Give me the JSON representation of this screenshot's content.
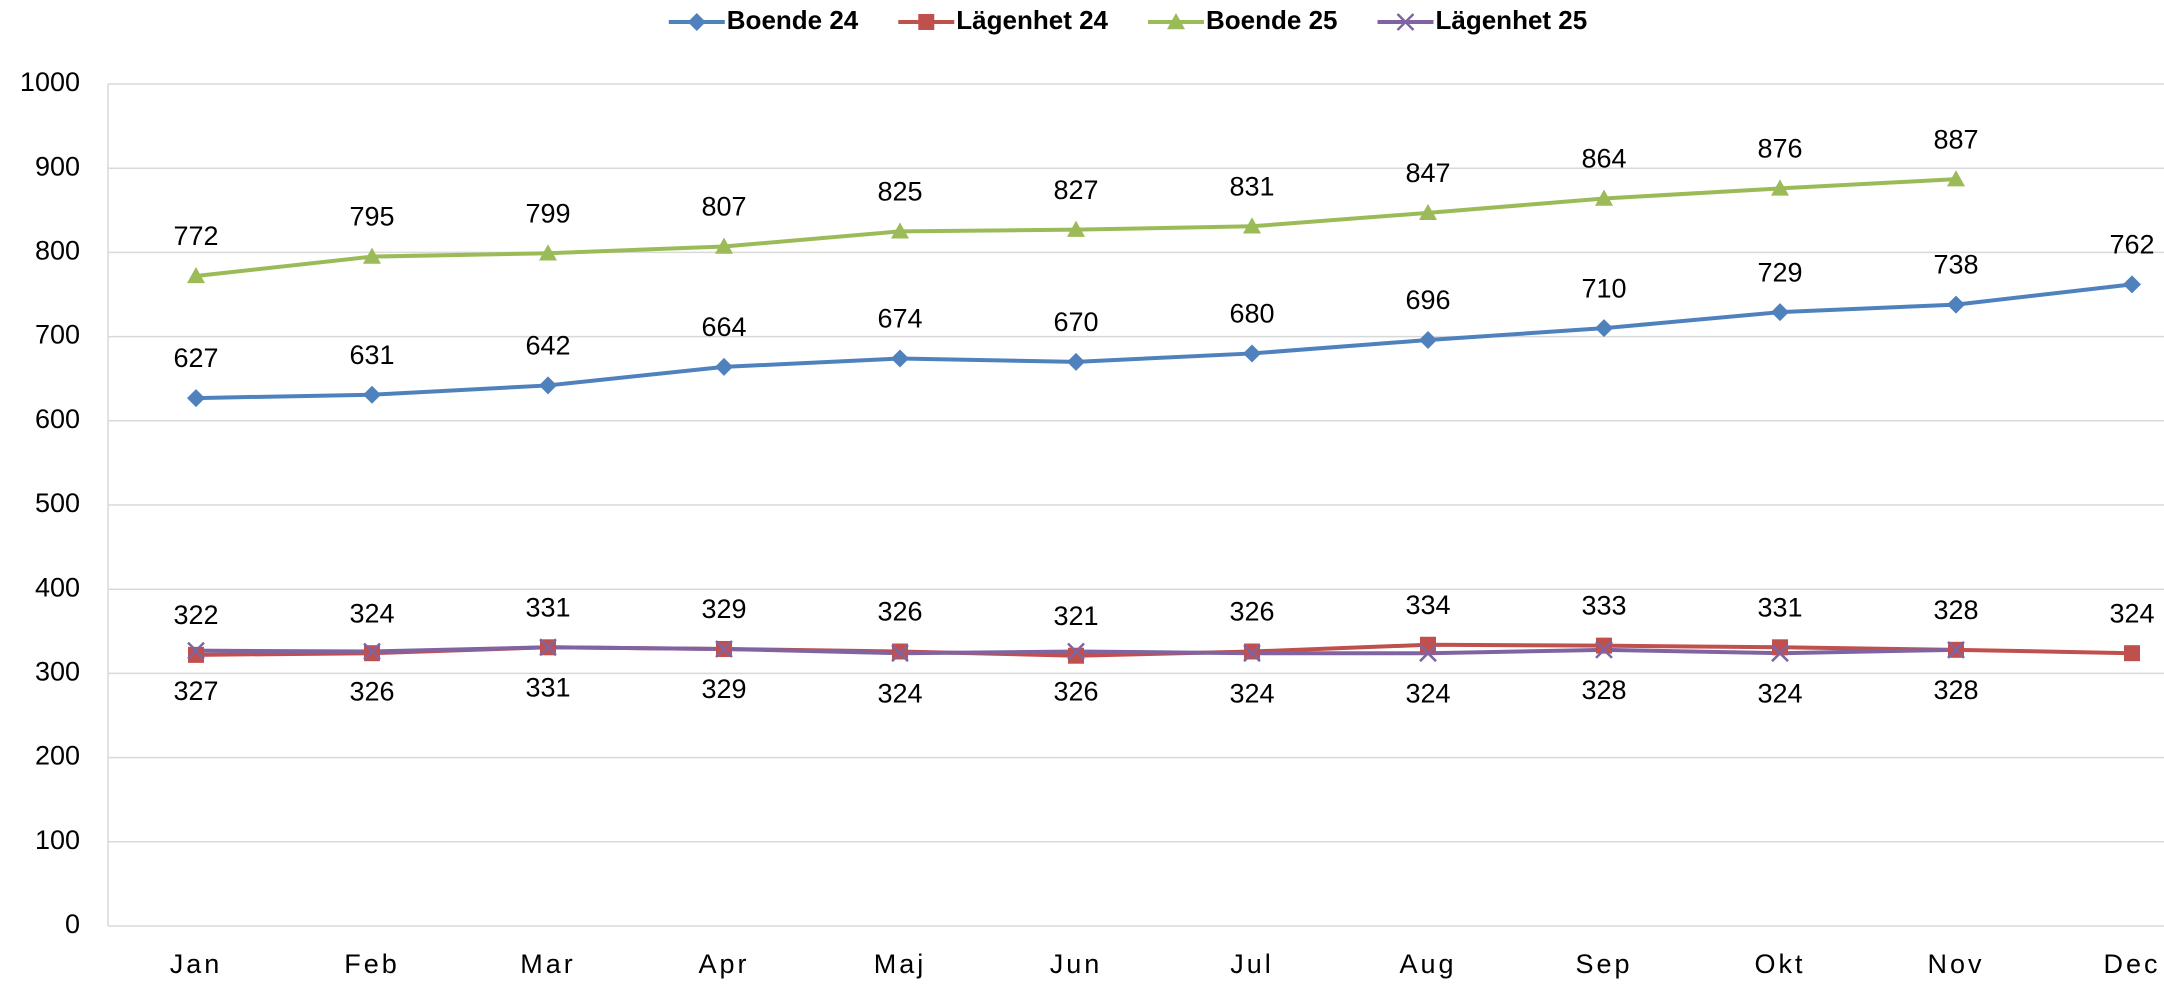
{
  "chart_data": {
    "type": "line",
    "categories": [
      "Jan",
      "Feb",
      "Mar",
      "Apr",
      "Maj",
      "Jun",
      "Jul",
      "Aug",
      "Sep",
      "Okt",
      "Nov",
      "Dec"
    ],
    "series": [
      {
        "name": "Boende 24",
        "color": "#4f81bd",
        "marker": "diamond",
        "values": [
          627,
          631,
          642,
          664,
          674,
          670,
          680,
          696,
          710,
          729,
          738,
          762
        ]
      },
      {
        "name": "Lägenhet 24",
        "color": "#c0504d",
        "marker": "square",
        "values": [
          322,
          324,
          331,
          329,
          326,
          321,
          326,
          334,
          333,
          331,
          328,
          324
        ]
      },
      {
        "name": "Boende 25",
        "color": "#9bbb59",
        "marker": "triangle",
        "values": [
          772,
          795,
          799,
          807,
          825,
          827,
          831,
          847,
          864,
          876,
          887,
          null
        ]
      },
      {
        "name": "Lägenhet 25",
        "color": "#8064a2",
        "marker": "x",
        "values": [
          327,
          326,
          331,
          329,
          324,
          326,
          324,
          324,
          328,
          324,
          328,
          null
        ]
      }
    ],
    "ylim": [
      0,
      1000
    ],
    "yticks": [
      0,
      100,
      200,
      300,
      400,
      500,
      600,
      700,
      800,
      900,
      1000
    ],
    "grid": true,
    "legend": "top"
  }
}
